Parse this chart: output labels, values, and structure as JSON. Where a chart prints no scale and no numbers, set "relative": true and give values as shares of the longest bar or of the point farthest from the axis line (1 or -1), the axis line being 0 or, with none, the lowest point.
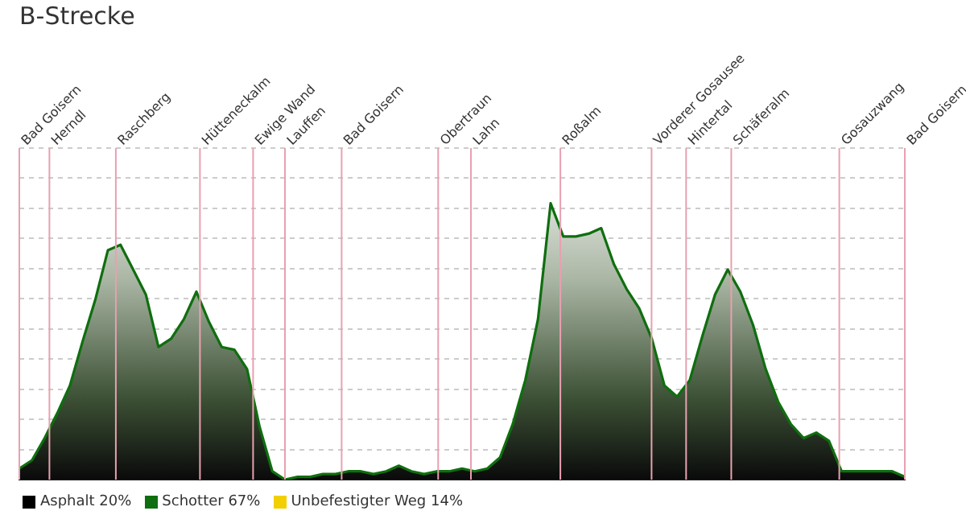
{
  "chart_data": {
    "type": "area",
    "title": "B-Strecke",
    "relative": true,
    "grid": true,
    "categories": [
      null,
      null,
      null,
      null,
      null,
      null,
      null,
      null,
      null,
      null,
      null,
      null,
      null,
      null,
      null,
      null,
      null,
      null,
      null,
      null,
      null,
      null,
      null,
      null,
      null,
      null,
      null,
      null,
      null,
      null,
      null,
      null,
      null,
      null,
      null,
      null,
      null,
      null,
      null,
      null,
      null,
      null,
      null,
      null,
      null,
      null,
      null,
      null,
      null,
      null,
      null,
      null,
      null,
      null,
      null,
      null,
      null,
      null,
      null,
      null,
      null,
      null,
      null,
      null,
      null,
      null,
      null,
      null,
      null,
      null,
      null
    ],
    "series": [
      {
        "color": "#0f6e0f",
        "values": [
          0.04,
          0.07,
          0.15,
          0.24,
          0.34,
          0.5,
          0.65,
          0.83,
          0.85,
          0.76,
          0.67,
          0.48,
          0.51,
          0.58,
          0.68,
          0.57,
          0.48,
          0.47,
          0.4,
          0.19,
          0.03,
          0,
          0.01,
          0.01,
          0.02,
          0.02,
          0.03,
          0.03,
          0.02,
          0.03,
          0.05,
          0.03,
          0.02,
          0.03,
          0.03,
          0.04,
          0.03,
          0.04,
          0.08,
          0.2,
          0.36,
          0.58,
          1,
          0.88,
          0.88,
          0.89,
          0.91,
          0.78,
          0.69,
          0.62,
          0.51,
          0.34,
          0.3,
          0.36,
          0.52,
          0.67,
          0.76,
          0.68,
          0.56,
          0.4,
          0.28,
          0.2,
          0.15,
          0.17,
          0.14,
          0.03,
          0.03,
          0.03,
          0.03,
          0.03,
          0.01
        ]
      }
    ],
    "annotations": [
      "Asphalt 20%",
      "Schotter 67%",
      "Unbefestigter Weg 14%",
      "Bad Goisern",
      "Herndl",
      "Raschberg",
      "Hütteneckalm",
      "Ewige Wand",
      "Lauffen",
      "Bad Goisern",
      "Obertraun",
      "Lahn",
      "Roßalm",
      "Vorderer Gosausee",
      "Hintertal",
      "Schäferalm",
      "Gosauzwang",
      "Bad Goisern"
    ]
  }
}
